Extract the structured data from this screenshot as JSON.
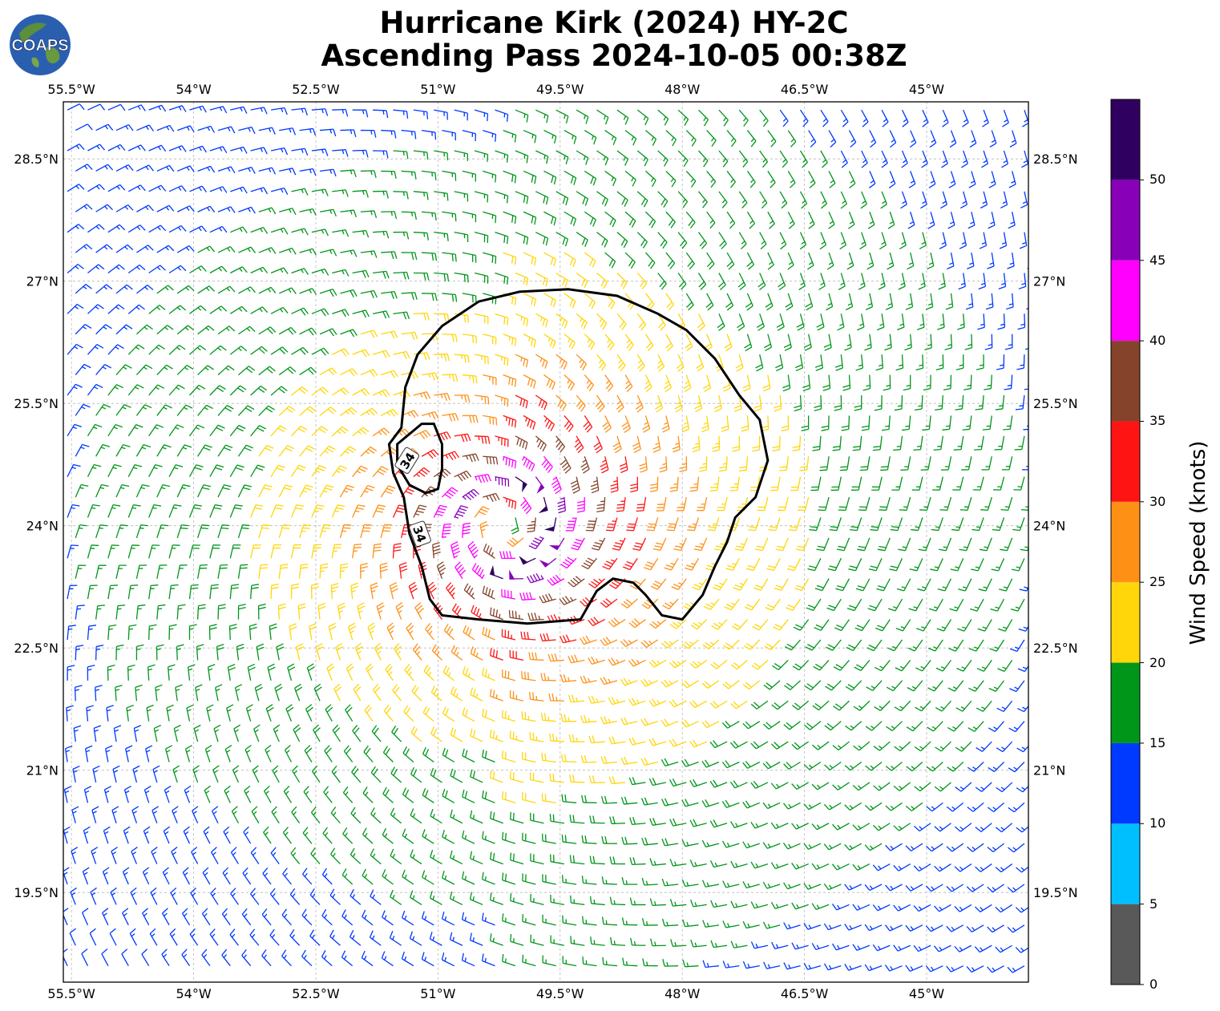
{
  "title": {
    "line1": "Hurricane Kirk (2024) HY-2C",
    "line2": "Ascending Pass 2024-10-05 00:38Z"
  },
  "logo": {
    "text": "COAPS"
  },
  "map": {
    "lon_range": [
      -55.6,
      -43.75
    ],
    "lat_range": [
      18.4,
      29.2
    ],
    "lon_ticks": [
      {
        "value": -55.5,
        "label": "55.5°W"
      },
      {
        "value": -54.0,
        "label": "54°W"
      },
      {
        "value": -52.5,
        "label": "52.5°W"
      },
      {
        "value": -51.0,
        "label": "51°W"
      },
      {
        "value": -49.5,
        "label": "49.5°W"
      },
      {
        "value": -48.0,
        "label": "48°W"
      },
      {
        "value": -46.5,
        "label": "46.5°W"
      },
      {
        "value": -45.0,
        "label": "45°W"
      }
    ],
    "lat_ticks": [
      {
        "value": 28.5,
        "label": "28.5°N"
      },
      {
        "value": 27.0,
        "label": "27°N"
      },
      {
        "value": 25.5,
        "label": "25.5°N"
      },
      {
        "value": 24.0,
        "label": "24°N"
      },
      {
        "value": 22.5,
        "label": "22.5°N"
      },
      {
        "value": 21.0,
        "label": "21°N"
      },
      {
        "value": 19.5,
        "label": "19.5°N"
      }
    ],
    "grid": true,
    "storm_center": {
      "lon": -50.2,
      "lat": 24.0
    },
    "contour_label": "34",
    "contour_34kt": [
      [
        -51.45,
        25.2
      ],
      [
        -51.4,
        25.7
      ],
      [
        -51.25,
        26.1
      ],
      [
        -50.95,
        26.45
      ],
      [
        -50.5,
        26.75
      ],
      [
        -50.0,
        26.87
      ],
      [
        -49.4,
        26.9
      ],
      [
        -48.8,
        26.82
      ],
      [
        -48.3,
        26.6
      ],
      [
        -47.95,
        26.4
      ],
      [
        -47.6,
        26.05
      ],
      [
        -47.3,
        25.6
      ],
      [
        -47.05,
        25.3
      ],
      [
        -46.95,
        24.8
      ],
      [
        -47.1,
        24.35
      ],
      [
        -47.35,
        24.1
      ],
      [
        -47.45,
        23.8
      ],
      [
        -47.6,
        23.5
      ],
      [
        -47.75,
        23.15
      ],
      [
        -48.0,
        22.85
      ],
      [
        -48.25,
        22.9
      ],
      [
        -48.45,
        23.15
      ],
      [
        -48.6,
        23.3
      ],
      [
        -48.85,
        23.35
      ],
      [
        -49.05,
        23.2
      ],
      [
        -49.25,
        22.85
      ],
      [
        -49.9,
        22.8
      ],
      [
        -50.5,
        22.85
      ],
      [
        -50.95,
        22.9
      ],
      [
        -51.1,
        23.1
      ],
      [
        -51.2,
        23.5
      ],
      [
        -51.35,
        23.9
      ],
      [
        -51.42,
        24.35
      ],
      [
        -51.55,
        24.65
      ],
      [
        -51.6,
        25.0
      ],
      [
        -51.45,
        25.2
      ]
    ],
    "contour_34kt_inner": [
      [
        -51.5,
        25.0
      ],
      [
        -51.2,
        25.25
      ],
      [
        -51.05,
        25.25
      ],
      [
        -50.95,
        25.0
      ],
      [
        -50.95,
        24.7
      ],
      [
        -51.0,
        24.45
      ],
      [
        -51.15,
        24.4
      ],
      [
        -51.35,
        24.5
      ],
      [
        -51.5,
        24.75
      ],
      [
        -51.5,
        25.0
      ]
    ]
  },
  "colorbar": {
    "label": "Wind Speed (knots)",
    "levels": [
      0,
      5,
      10,
      15,
      20,
      25,
      30,
      35,
      40,
      45,
      50,
      55
    ],
    "tick_labels": [
      "0",
      "5",
      "10",
      "15",
      "20",
      "25",
      "30",
      "35",
      "40",
      "45",
      "50"
    ],
    "colors": [
      "#595959",
      "#00BFFF",
      "#0039FF",
      "#00961A",
      "#FFD60A",
      "#FF9016",
      "#FF1414",
      "#84432A",
      "#FF00FF",
      "#8800B8",
      "#300060"
    ]
  }
}
